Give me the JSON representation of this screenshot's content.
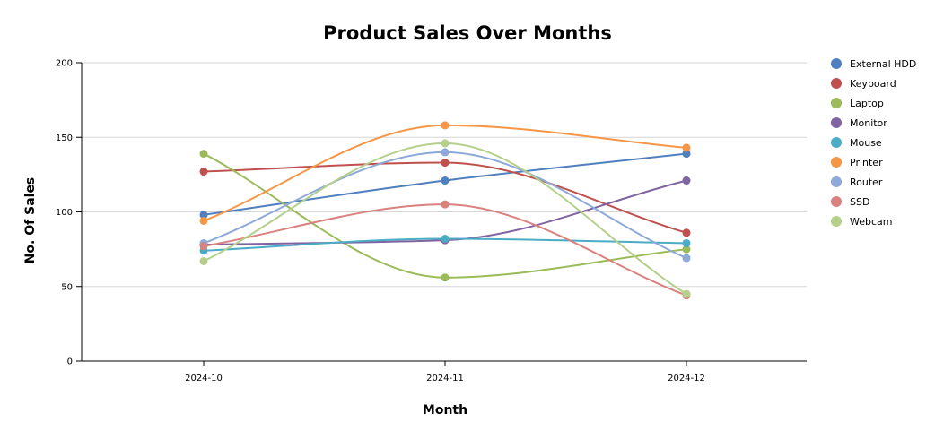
{
  "chart_data": {
    "type": "line",
    "title": "Product Sales Over Months",
    "xlabel": "Month",
    "ylabel": "No. Of Sales",
    "categories": [
      "2024-10",
      "2024-11",
      "2024-12"
    ],
    "ylim": [
      0,
      200
    ],
    "yticks": [
      0,
      50,
      100,
      150,
      200
    ],
    "grid": true,
    "legend_position": "right",
    "series": [
      {
        "name": "External HDD",
        "color": "#4f7fbf",
        "values": [
          98,
          121,
          139
        ]
      },
      {
        "name": "Keyboard",
        "color": "#c0504d",
        "values": [
          127,
          133,
          86
        ]
      },
      {
        "name": "Laptop",
        "color": "#9bbb59",
        "values": [
          139,
          56,
          75
        ]
      },
      {
        "name": "Monitor",
        "color": "#8064a2",
        "values": [
          78,
          81,
          121
        ]
      },
      {
        "name": "Mouse",
        "color": "#4bacc6",
        "values": [
          74,
          82,
          79
        ]
      },
      {
        "name": "Printer",
        "color": "#f79646",
        "values": [
          94,
          158,
          143
        ]
      },
      {
        "name": "Router",
        "color": "#8ea9d8",
        "values": [
          79,
          140,
          69
        ]
      },
      {
        "name": "SSD",
        "color": "#d9827f",
        "values": [
          77,
          105,
          44
        ]
      },
      {
        "name": "Webcam",
        "color": "#b5d08a",
        "values": [
          67,
          146,
          45
        ]
      }
    ]
  }
}
